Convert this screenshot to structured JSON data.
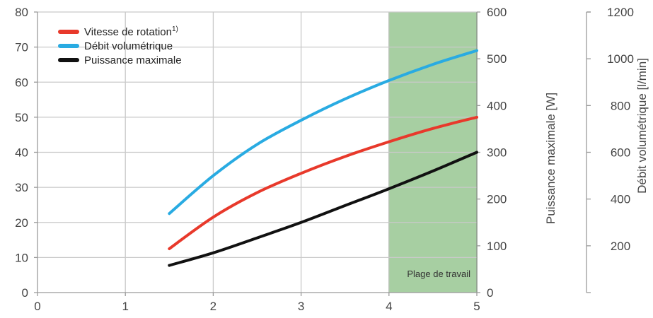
{
  "chart_data": {
    "type": "line",
    "title": "",
    "x_ticks": [
      "0",
      "1",
      "2",
      "3",
      "4",
      "5"
    ],
    "xlim": [
      0,
      5
    ],
    "y_left": {
      "ticks": [
        "0",
        "10",
        "20",
        "30",
        "40",
        "50",
        "60",
        "70",
        "80"
      ],
      "lim": [
        0,
        80
      ]
    },
    "y_right1": {
      "label": "Puissance maximale [W]",
      "ticks": [
        "0",
        "100",
        "200",
        "300",
        "400",
        "500",
        "600"
      ],
      "lim": [
        0,
        600
      ]
    },
    "y_right2": {
      "label": "Débit volumétrique [l/min]",
      "ticks": [
        "200",
        "400",
        "600",
        "800",
        "1000",
        "1200"
      ],
      "lim": [
        0,
        1200
      ]
    },
    "grid": true,
    "legend_position": "top-left",
    "band": {
      "x_from": 4,
      "x_to": 5,
      "label": "Plage de travail",
      "color": "#a7cfa2",
      "edge_color": "#6aa765"
    },
    "series": [
      {
        "name": "Vitesse de rotation",
        "superscript": "1)",
        "color": "#e8392b",
        "axis": "left",
        "x": [
          1.5,
          2,
          2.5,
          3,
          3.5,
          4,
          4.5,
          5
        ],
        "y": [
          12.5,
          21.5,
          28.5,
          34,
          38.8,
          43,
          46.8,
          50
        ]
      },
      {
        "name": "Débit volumétrique",
        "superscript": "",
        "color": "#29abe2",
        "axis": "debit",
        "x": [
          1.5,
          2,
          2.5,
          3,
          3.5,
          4,
          4.5,
          5
        ],
        "y": [
          338,
          500,
          634,
          737,
          828,
          907,
          976,
          1035
        ]
      },
      {
        "name": "Puissance maximale",
        "superscript": "",
        "color": "#111111",
        "axis": "puissance",
        "x": [
          1.5,
          2,
          2.5,
          3,
          3.5,
          4,
          4.5,
          5
        ],
        "y": [
          58,
          85,
          117,
          150,
          186,
          222,
          260,
          300
        ]
      }
    ]
  }
}
